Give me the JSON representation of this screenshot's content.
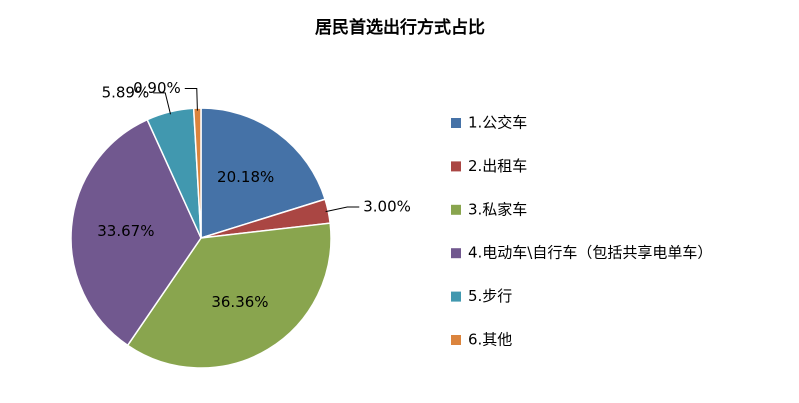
{
  "chart_data": {
    "type": "pie",
    "title": "居民首选出行方式占比",
    "categories": [
      "1.公交车",
      "2.出租车",
      "3.私家车",
      "4.电动车\\自行车（包括共享电单车）",
      "5.步行",
      "6.其他"
    ],
    "values": [
      20.18,
      3.0,
      36.36,
      33.67,
      5.89,
      0.9
    ],
    "value_labels": [
      "20.18%",
      "3.00%",
      "36.36%",
      "33.67%",
      "5.89%",
      "0.90%"
    ],
    "colors": [
      "#4572a7",
      "#aa4643",
      "#89a54e",
      "#71588f",
      "#4198af",
      "#db843d"
    ],
    "legend": "right"
  }
}
